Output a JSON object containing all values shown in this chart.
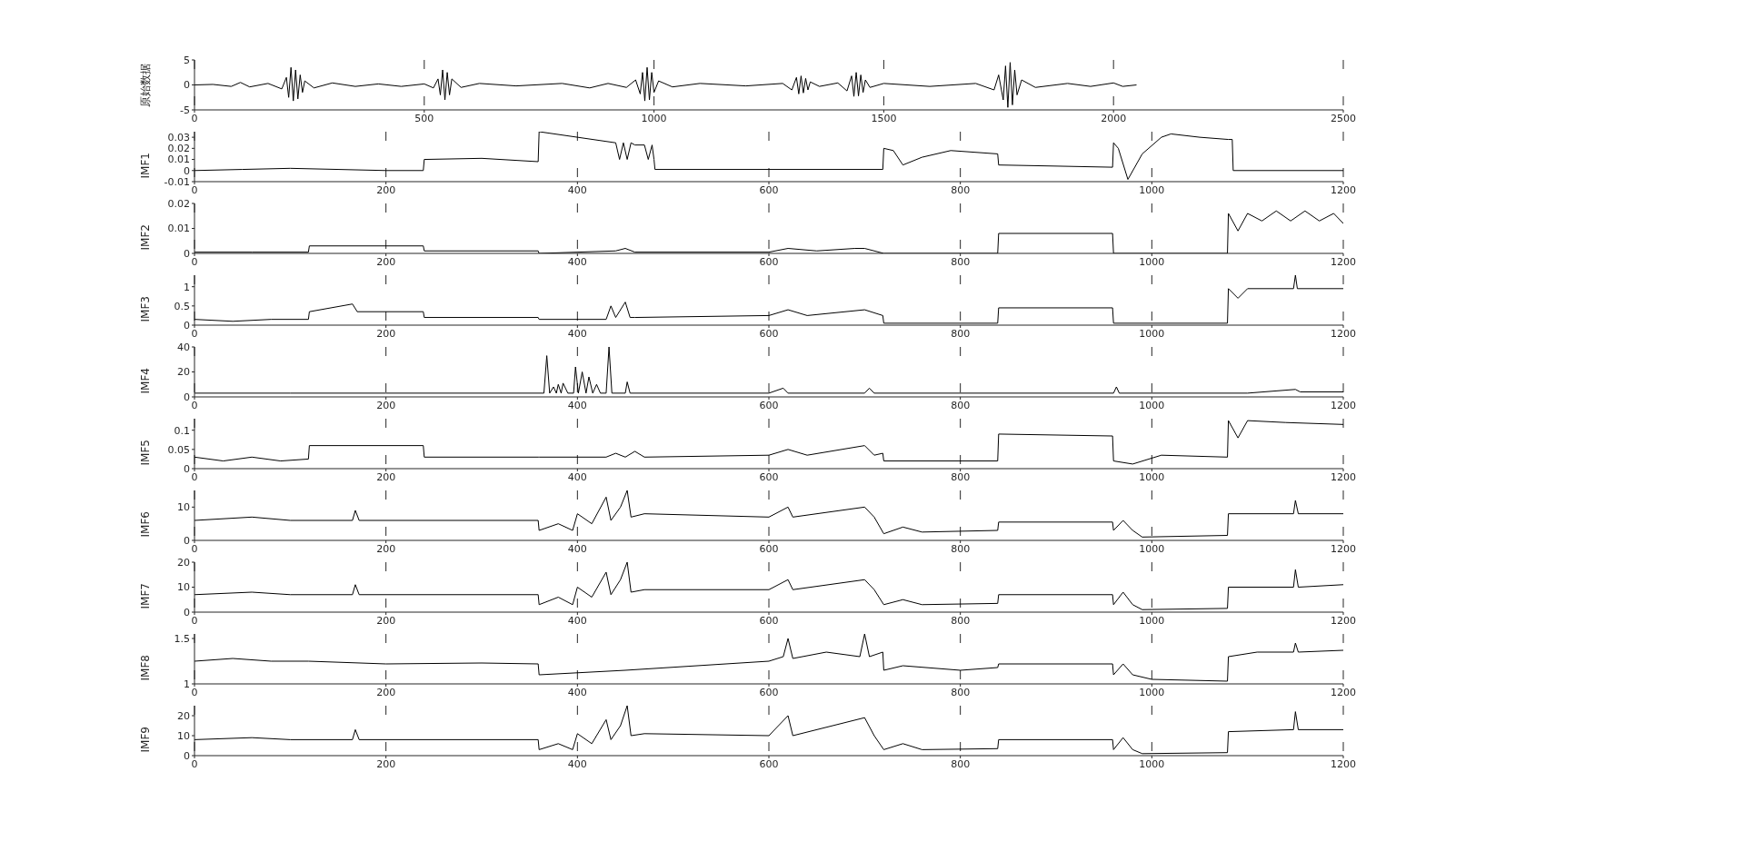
{
  "chart_data": [
    {
      "type": "line",
      "ylabel": "原始数据",
      "color": "#000000",
      "grid": "x",
      "marker": "none",
      "xlim": [
        0,
        2500
      ],
      "xticks": [
        0,
        500,
        1000,
        1500,
        2000,
        2500
      ],
      "ylim": [
        -5,
        5
      ],
      "yticks": [
        -5,
        0,
        5
      ],
      "x": [
        0,
        40,
        80,
        100,
        120,
        160,
        190,
        200,
        205,
        210,
        215,
        220,
        225,
        230,
        235,
        240,
        260,
        300,
        350,
        400,
        450,
        500,
        520,
        530,
        535,
        540,
        545,
        550,
        555,
        560,
        580,
        620,
        700,
        800,
        860,
        900,
        940,
        960,
        970,
        975,
        980,
        985,
        990,
        995,
        1000,
        1010,
        1040,
        1100,
        1200,
        1280,
        1300,
        1310,
        1315,
        1320,
        1325,
        1330,
        1335,
        1340,
        1360,
        1400,
        1420,
        1430,
        1435,
        1440,
        1445,
        1450,
        1455,
        1460,
        1470,
        1500,
        1600,
        1700,
        1740,
        1750,
        1760,
        1765,
        1770,
        1775,
        1780,
        1785,
        1790,
        1800,
        1830,
        1900,
        1950,
        2000,
        2020,
        2050
      ],
      "values": [
        0,
        0.1,
        -0.3,
        0.5,
        -0.4,
        0.3,
        -0.8,
        1.5,
        -2.5,
        3.5,
        -3.2,
        3,
        -2.8,
        2,
        -1.5,
        0.8,
        -0.6,
        0.4,
        -0.3,
        0.2,
        -0.3,
        0.2,
        -0.6,
        1.2,
        -2,
        3,
        -3,
        2.5,
        -2,
        1.2,
        -0.5,
        0.3,
        -0.2,
        0.3,
        -0.6,
        0.3,
        -0.5,
        1,
        -1.8,
        2.5,
        -3.2,
        3.5,
        -3,
        2.5,
        -1.5,
        0.8,
        -0.4,
        0.3,
        -0.2,
        0.3,
        -1,
        1.5,
        -1.8,
        1.8,
        -1.6,
        1.3,
        -1,
        0.6,
        -0.3,
        0.4,
        -1.2,
        1.8,
        -2.3,
        2.5,
        -2.2,
        2,
        -1.5,
        1,
        -0.5,
        0.3,
        -0.3,
        0.3,
        -1,
        2,
        -3,
        3.8,
        -4.5,
        4.5,
        -4,
        3,
        -2,
        1,
        -0.5,
        0.3,
        -0.3,
        0.4,
        -0.3,
        0
      ]
    },
    {
      "type": "line",
      "ylabel": "IMF1",
      "color": "#000000",
      "grid": "x",
      "marker": "none",
      "xlim": [
        0,
        1200
      ],
      "xticks": [
        0,
        200,
        400,
        600,
        800,
        1000,
        1200
      ],
      "ylim": [
        -0.01,
        0.035
      ],
      "yticks": [
        -0.01,
        0,
        0.01,
        0.02,
        0.03
      ],
      "x": [
        0,
        50,
        100,
        150,
        200,
        239,
        240,
        300,
        359,
        360,
        400,
        440,
        444,
        448,
        452,
        456,
        460,
        470,
        474,
        478,
        480,
        481,
        600,
        719,
        720,
        730,
        740,
        760,
        790,
        839,
        840,
        900,
        959,
        960,
        965,
        975,
        990,
        1010,
        1020,
        1050,
        1080,
        1084,
        1085,
        1200
      ],
      "values": [
        0,
        0.001,
        0.002,
        0.001,
        0,
        0,
        0.01,
        0.011,
        0.008,
        0.035,
        0.03,
        0.025,
        0.01,
        0.025,
        0.01,
        0.025,
        0.023,
        0.023,
        0.01,
        0.023,
        0.01,
        0.001,
        0.001,
        0.001,
        0.02,
        0.018,
        0.005,
        0.012,
        0.018,
        0.015,
        0.005,
        0.004,
        0.003,
        0.025,
        0.02,
        -0.008,
        0.015,
        0.03,
        0.033,
        0.03,
        0.028,
        0.028,
        0,
        0
      ]
    },
    {
      "type": "line",
      "ylabel": "IMF2",
      "color": "#000000",
      "grid": "x",
      "marker": "none",
      "xlim": [
        0,
        1200
      ],
      "xticks": [
        0,
        200,
        400,
        600,
        800,
        1000,
        1200
      ],
      "ylim": [
        0,
        0.02
      ],
      "yticks": [
        0,
        0.01,
        0.02
      ],
      "x": [
        0,
        60,
        119,
        120,
        239,
        240,
        359,
        360,
        440,
        450,
        460,
        600,
        620,
        650,
        690,
        700,
        720,
        839,
        840,
        959,
        960,
        1079,
        1080,
        1090,
        1100,
        1115,
        1130,
        1145,
        1160,
        1175,
        1190,
        1200
      ],
      "values": [
        0.0005,
        0.0005,
        0.0005,
        0.003,
        0.003,
        0.001,
        0.001,
        0,
        0.001,
        0.002,
        0.0005,
        0.0005,
        0.002,
        0.001,
        0.002,
        0.002,
        0,
        0,
        0.008,
        0.008,
        0,
        0,
        0.016,
        0.009,
        0.016,
        0.013,
        0.017,
        0.013,
        0.017,
        0.013,
        0.016,
        0.012
      ]
    },
    {
      "type": "line",
      "ylabel": "IMF3",
      "color": "#000000",
      "grid": "x",
      "marker": "none",
      "xlim": [
        0,
        1200
      ],
      "xticks": [
        0,
        200,
        400,
        600,
        800,
        1000,
        1200
      ],
      "ylim": [
        0,
        1.3
      ],
      "yticks": [
        0,
        0.5,
        1
      ],
      "x": [
        0,
        40,
        80,
        119,
        120,
        165,
        170,
        239,
        240,
        300,
        359,
        360,
        430,
        435,
        440,
        450,
        455,
        460,
        600,
        620,
        640,
        700,
        719,
        720,
        839,
        840,
        959,
        960,
        1079,
        1080,
        1090,
        1100,
        1148,
        1150,
        1152,
        1200
      ],
      "values": [
        0.15,
        0.1,
        0.15,
        0.15,
        0.35,
        0.55,
        0.35,
        0.35,
        0.2,
        0.2,
        0.2,
        0.15,
        0.15,
        0.5,
        0.2,
        0.6,
        0.2,
        0.2,
        0.25,
        0.4,
        0.25,
        0.4,
        0.25,
        0.05,
        0.05,
        0.45,
        0.45,
        0.05,
        0.05,
        0.95,
        0.7,
        0.95,
        0.95,
        1.3,
        0.95,
        0.95
      ]
    },
    {
      "type": "line",
      "ylabel": "IMF4",
      "color": "#000000",
      "grid": "x",
      "marker": "none",
      "xlim": [
        0,
        1200
      ],
      "xticks": [
        0,
        200,
        400,
        600,
        800,
        1000,
        1200
      ],
      "ylim": [
        0,
        40
      ],
      "yticks": [
        0,
        20,
        40
      ],
      "x": [
        0,
        100,
        200,
        300,
        365,
        368,
        371,
        375,
        378,
        380,
        383,
        385,
        390,
        396,
        398,
        401,
        405,
        409,
        412,
        416,
        420,
        424,
        430,
        433,
        436,
        450,
        452,
        455,
        600,
        615,
        620,
        700,
        705,
        710,
        900,
        960,
        963,
        966,
        1100,
        1150,
        1155,
        1200
      ],
      "values": [
        3,
        3,
        3,
        3,
        3,
        33,
        3,
        8,
        3,
        10,
        3,
        11,
        3,
        3,
        24,
        3,
        20,
        3,
        16,
        3,
        10,
        3,
        3,
        40,
        3,
        3,
        12,
        3,
        3,
        7,
        3,
        3,
        7,
        3,
        3,
        3,
        8,
        3,
        3,
        6,
        4,
        4
      ]
    },
    {
      "type": "line",
      "ylabel": "IMF5",
      "color": "#000000",
      "grid": "x",
      "marker": "none",
      "xlim": [
        0,
        1200
      ],
      "xticks": [
        0,
        200,
        400,
        600,
        800,
        1000,
        1200
      ],
      "ylim": [
        0,
        0.13
      ],
      "yticks": [
        0,
        0.05,
        0.1
      ],
      "x": [
        0,
        30,
        60,
        90,
        119,
        120,
        239,
        240,
        300,
        359,
        360,
        430,
        440,
        450,
        460,
        470,
        600,
        620,
        640,
        700,
        710,
        719,
        720,
        839,
        840,
        959,
        960,
        980,
        1010,
        1079,
        1080,
        1090,
        1100,
        1140,
        1200
      ],
      "values": [
        0.03,
        0.02,
        0.03,
        0.02,
        0.025,
        0.06,
        0.06,
        0.03,
        0.03,
        0.03,
        0.03,
        0.03,
        0.04,
        0.03,
        0.045,
        0.03,
        0.035,
        0.05,
        0.035,
        0.06,
        0.035,
        0.04,
        0.02,
        0.02,
        0.09,
        0.085,
        0.02,
        0.012,
        0.035,
        0.03,
        0.125,
        0.08,
        0.125,
        0.12,
        0.115
      ]
    },
    {
      "type": "line",
      "ylabel": "IMF6",
      "color": "#000000",
      "grid": "x",
      "marker": "none",
      "xlim": [
        0,
        1200
      ],
      "xticks": [
        0,
        200,
        400,
        600,
        800,
        1000,
        1200
      ],
      "ylim": [
        0,
        15
      ],
      "yticks": [
        0,
        10
      ],
      "x": [
        0,
        60,
        100,
        165,
        168,
        172,
        300,
        359,
        360,
        380,
        395,
        400,
        415,
        430,
        435,
        445,
        452,
        456,
        470,
        600,
        620,
        625,
        700,
        710,
        720,
        740,
        760,
        839,
        840,
        959,
        960,
        970,
        980,
        990,
        1079,
        1080,
        1148,
        1150,
        1153,
        1200
      ],
      "values": [
        6,
        7,
        6,
        6,
        9,
        6,
        6,
        6,
        3,
        5,
        3,
        8,
        5,
        13,
        6,
        10,
        15,
        7,
        8,
        7,
        10,
        7,
        10,
        7,
        2,
        4,
        2.5,
        3,
        5.5,
        5.5,
        3,
        6,
        3,
        1,
        1.5,
        8,
        8,
        12,
        8,
        8
      ]
    },
    {
      "type": "line",
      "ylabel": "IMF7",
      "color": "#000000",
      "grid": "x",
      "marker": "none",
      "xlim": [
        0,
        1200
      ],
      "xticks": [
        0,
        200,
        400,
        600,
        800,
        1000,
        1200
      ],
      "ylim": [
        0,
        20
      ],
      "yticks": [
        0,
        10,
        20
      ],
      "x": [
        0,
        60,
        100,
        165,
        168,
        172,
        300,
        359,
        360,
        380,
        395,
        400,
        415,
        430,
        435,
        445,
        452,
        456,
        470,
        600,
        620,
        625,
        700,
        710,
        720,
        740,
        760,
        839,
        840,
        959,
        960,
        970,
        980,
        990,
        1079,
        1080,
        1148,
        1150,
        1153,
        1200
      ],
      "values": [
        7,
        8,
        7,
        7,
        11,
        7,
        7,
        7,
        3,
        6,
        3,
        10,
        6,
        16,
        7,
        13,
        20,
        8,
        9,
        9,
        13,
        9,
        13,
        9,
        3,
        5,
        3,
        3.5,
        7,
        7,
        3,
        8,
        3,
        1,
        1.5,
        10,
        10,
        17,
        10,
        11
      ]
    },
    {
      "type": "line",
      "ylabel": "IMF8",
      "color": "#000000",
      "grid": "x",
      "marker": "none",
      "xlim": [
        0,
        1200
      ],
      "xticks": [
        0,
        200,
        400,
        600,
        800,
        1000,
        1200
      ],
      "ylim": [
        1,
        1.55
      ],
      "yticks": [
        1,
        1.5
      ],
      "x": [
        0,
        40,
        80,
        119,
        200,
        300,
        359,
        360,
        450,
        600,
        615,
        620,
        625,
        660,
        695,
        700,
        705,
        719,
        720,
        740,
        800,
        839,
        840,
        959,
        960,
        970,
        980,
        1000,
        1079,
        1080,
        1110,
        1148,
        1150,
        1153,
        1200
      ],
      "values": [
        1.25,
        1.28,
        1.25,
        1.25,
        1.22,
        1.23,
        1.22,
        1.1,
        1.15,
        1.25,
        1.3,
        1.5,
        1.28,
        1.35,
        1.3,
        1.55,
        1.3,
        1.35,
        1.15,
        1.2,
        1.15,
        1.18,
        1.22,
        1.22,
        1.1,
        1.22,
        1.1,
        1.05,
        1.03,
        1.3,
        1.35,
        1.35,
        1.45,
        1.35,
        1.37
      ]
    },
    {
      "type": "line",
      "ylabel": "IMF9",
      "color": "#000000",
      "grid": "x",
      "marker": "none",
      "xlim": [
        0,
        1200
      ],
      "xticks": [
        0,
        200,
        400,
        600,
        800,
        1000,
        1200
      ],
      "ylim": [
        0,
        25
      ],
      "yticks": [
        0,
        10,
        20
      ],
      "x": [
        0,
        60,
        100,
        165,
        168,
        172,
        300,
        359,
        360,
        380,
        395,
        400,
        415,
        430,
        435,
        445,
        452,
        456,
        470,
        600,
        620,
        625,
        700,
        710,
        720,
        740,
        760,
        839,
        840,
        959,
        960,
        970,
        980,
        990,
        1079,
        1080,
        1148,
        1150,
        1153,
        1200
      ],
      "values": [
        8,
        9,
        8,
        8,
        13,
        8,
        8,
        8,
        3,
        6,
        3,
        11,
        6,
        18,
        8,
        15,
        25,
        10,
        11,
        10,
        20,
        10,
        19,
        10,
        3,
        6,
        3,
        3.5,
        8,
        8,
        3,
        9,
        3,
        1,
        1.5,
        12,
        13,
        22,
        13,
        13
      ]
    }
  ]
}
